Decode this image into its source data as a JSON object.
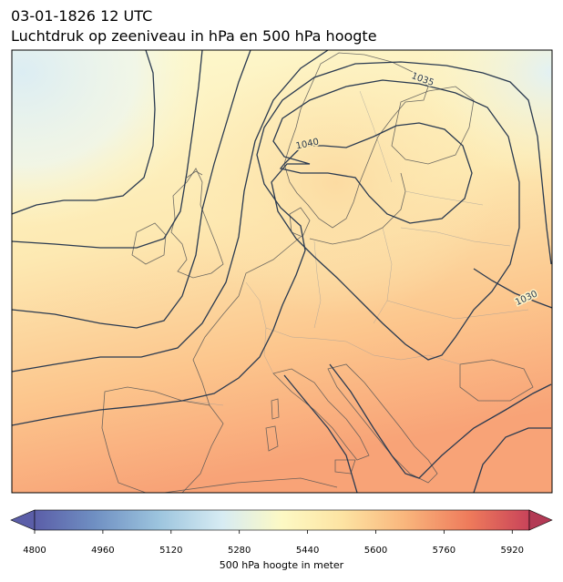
{
  "title": {
    "line1": "03-01-1826 12 UTC",
    "line2": "Luchtdruk op zeeniveau in hPa en 500 hPa hoogte"
  },
  "map": {
    "region": "Europe",
    "contour_labels": [
      "1035",
      "1040",
      "1030"
    ]
  },
  "colorbar": {
    "label": "500 hPa hoogte in meter",
    "ticks": [
      "4800",
      "4960",
      "5120",
      "5280",
      "5440",
      "5600",
      "5760",
      "5920"
    ],
    "range": [
      4800,
      5960
    ],
    "colormap": "RdYlBu_r",
    "extend": "both"
  }
}
